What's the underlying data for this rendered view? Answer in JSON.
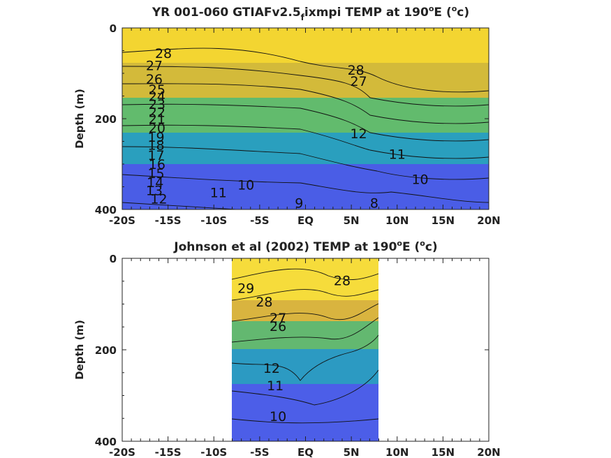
{
  "chart_data": [
    {
      "type": "contour",
      "title": "YR 001-060 GTIAFv2.5_f ixmpi TEMP at 190°E (°c)",
      "title_parts": {
        "pre": "YR 001-060 GTIAFv2.5",
        "sub": "f",
        "post": "ixmpi TEMP at 190",
        "sup1": "o",
        "mid": "E (",
        "sup2": "o",
        "end": "c)"
      },
      "xlabel": "",
      "ylabel": "Depth (m)",
      "xlim": [
        -20,
        20
      ],
      "ylim": [
        0,
        400
      ],
      "y_reversed": true,
      "x_ticks": [
        -20,
        -15,
        -10,
        -5,
        0,
        5,
        10,
        15,
        20
      ],
      "x_tick_labels": [
        "-20S",
        "-15S",
        "-10S",
        "-5S",
        "EQ",
        "5N",
        "10N",
        "15N",
        "20N"
      ],
      "y_ticks": [
        0,
        200,
        400
      ],
      "y_tick_labels": [
        "0",
        "200",
        "400"
      ],
      "data_x_range": [
        -20,
        20
      ],
      "contour_levels": [
        8,
        9,
        10,
        11,
        12,
        13,
        14,
        15,
        16,
        17,
        18,
        19,
        20,
        21,
        22,
        23,
        24,
        25,
        26,
        27,
        28
      ],
      "contour_labels": [
        {
          "text": "28",
          "x": -15.5,
          "y": 55
        },
        {
          "text": "27",
          "x": -16.5,
          "y": 82
        },
        {
          "text": "26",
          "x": -16.5,
          "y": 112
        },
        {
          "text": "25",
          "x": -16.2,
          "y": 135
        },
        {
          "text": "24",
          "x": -16.2,
          "y": 150
        },
        {
          "text": "23",
          "x": -16.2,
          "y": 168
        },
        {
          "text": "22",
          "x": -16.2,
          "y": 185
        },
        {
          "text": "21",
          "x": -16.2,
          "y": 200
        },
        {
          "text": "20",
          "x": -16.2,
          "y": 220
        },
        {
          "text": "19",
          "x": -16.3,
          "y": 240
        },
        {
          "text": "18",
          "x": -16.3,
          "y": 258
        },
        {
          "text": "17",
          "x": -16.3,
          "y": 280
        },
        {
          "text": "16",
          "x": -16.2,
          "y": 300
        },
        {
          "text": "15",
          "x": -16.3,
          "y": 320
        },
        {
          "text": "14",
          "x": -16.4,
          "y": 340
        },
        {
          "text": "13",
          "x": -16.5,
          "y": 358
        },
        {
          "text": "12",
          "x": -16.0,
          "y": 376
        },
        {
          "text": "11",
          "x": -9.5,
          "y": 362
        },
        {
          "text": "10",
          "x": -6.5,
          "y": 345
        },
        {
          "text": "9",
          "x": -0.7,
          "y": 385
        },
        {
          "text": "8",
          "x": 7.5,
          "y": 385
        },
        {
          "text": "28",
          "x": 5.5,
          "y": 92
        },
        {
          "text": "27",
          "x": 5.8,
          "y": 117
        },
        {
          "text": "12",
          "x": 5.8,
          "y": 232
        },
        {
          "text": "11",
          "x": 10.0,
          "y": 278
        },
        {
          "text": "10",
          "x": 12.5,
          "y": 333
        }
      ]
    },
    {
      "type": "contour",
      "title": "Johnson et al (2002) TEMP at 190°E (°c)",
      "title_parts": {
        "pre": "Johnson et al (2002) TEMP at 190",
        "sup1": "o",
        "mid": "E (",
        "sup2": "o",
        "end": "c)"
      },
      "xlabel": "",
      "ylabel": "Depth (m)",
      "xlim": [
        -20,
        20
      ],
      "ylim": [
        0,
        400
      ],
      "y_reversed": true,
      "x_ticks": [
        -20,
        -15,
        -10,
        -5,
        0,
        5,
        10,
        15,
        20
      ],
      "x_tick_labels": [
        "-20S",
        "-15S",
        "-10S",
        "-5S",
        "EQ",
        "5N",
        "10N",
        "15N",
        "20N"
      ],
      "y_ticks": [
        0,
        200,
        400
      ],
      "y_tick_labels": [
        "0",
        "200",
        "400"
      ],
      "data_x_range": [
        -8,
        8
      ],
      "contour_levels": [
        10,
        11,
        12,
        13,
        14,
        15,
        16,
        17,
        18,
        19,
        20,
        21,
        22,
        23,
        24,
        25,
        26,
        27,
        28,
        29
      ],
      "contour_labels": [
        {
          "text": "29",
          "x": -6.5,
          "y": 65
        },
        {
          "text": "28",
          "x": -4.5,
          "y": 95
        },
        {
          "text": "28",
          "x": 4.0,
          "y": 48
        },
        {
          "text": "27",
          "x": -3.0,
          "y": 130
        },
        {
          "text": "26",
          "x": -3.0,
          "y": 148
        },
        {
          "text": "12",
          "x": -3.7,
          "y": 240
        },
        {
          "text": "11",
          "x": -3.3,
          "y": 278
        },
        {
          "text": "10",
          "x": -3.0,
          "y": 345
        }
      ]
    }
  ]
}
